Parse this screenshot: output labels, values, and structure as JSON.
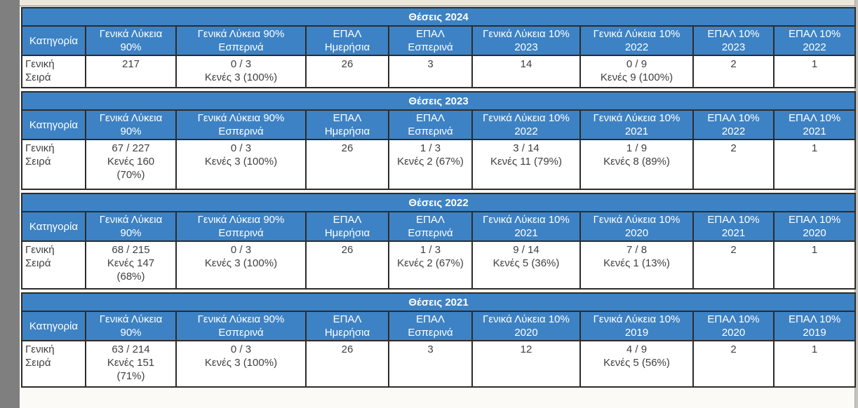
{
  "colors": {
    "header_blue": "#3d82c4",
    "border": "#2e2c28",
    "header_text": "#ffffff",
    "data_text": "#3f3f3f",
    "page_bg": "#fbfaf7",
    "top_band": "#ece7db",
    "left_strip": "#7f7f7f",
    "right_strip": "#c7c4be"
  },
  "tables": [
    {
      "title": "Θέσεις 2024",
      "year": "2024",
      "columns": [
        "Κατηγορία",
        "Γενικά Λύκεια\n90%",
        "Γενικά Λύκεια 90%\nΕσπερινά",
        "ΕΠΑΛ\nΗμερήσια",
        "ΕΠΑΛ\nΕσπερινά",
        "Γενικά Λύκεια 10%\n2023",
        "Γενικά Λύκεια 10%\n2022",
        "ΕΠΑΛ 10%\n2023",
        "ΕΠΑΛ 10%\n2022"
      ],
      "row": {
        "label": "Γενική\nΣειρά",
        "cells": [
          "217",
          "0 / 3\nΚενές 3 (100%)",
          "26",
          "3",
          "14",
          "0 / 9\nΚενές 9 (100%)",
          "2",
          "1"
        ]
      }
    },
    {
      "title": "Θέσεις 2023",
      "year": "2023",
      "columns": [
        "Κατηγορία",
        "Γενικά Λύκεια\n90%",
        "Γενικά Λύκεια 90%\nΕσπερινά",
        "ΕΠΑΛ\nΗμερήσια",
        "ΕΠΑΛ\nΕσπερινά",
        "Γενικά Λύκεια 10%\n2022",
        "Γενικά Λύκεια 10%\n2021",
        "ΕΠΑΛ 10%\n2022",
        "ΕΠΑΛ 10%\n2021"
      ],
      "row": {
        "label": "Γενική\nΣειρά",
        "cells": [
          "67 / 227\nΚενές 160\n(70%)",
          "0 / 3\nΚενές 3 (100%)",
          "26",
          "1 / 3\nΚενές 2 (67%)",
          "3 / 14\nΚενές 11 (79%)",
          "1 / 9\nΚενές 8 (89%)",
          "2",
          "1"
        ]
      }
    },
    {
      "title": "Θέσεις 2022",
      "year": "2022",
      "columns": [
        "Κατηγορία",
        "Γενικά Λύκεια\n90%",
        "Γενικά Λύκεια 90%\nΕσπερινά",
        "ΕΠΑΛ\nΗμερήσια",
        "ΕΠΑΛ\nΕσπερινά",
        "Γενικά Λύκεια 10%\n2021",
        "Γενικά Λύκεια 10%\n2020",
        "ΕΠΑΛ 10%\n2021",
        "ΕΠΑΛ 10%\n2020"
      ],
      "row": {
        "label": "Γενική\nΣειρά",
        "cells": [
          "68 / 215\nΚενές 147\n(68%)",
          "0 / 3\nΚενές 3 (100%)",
          "26",
          "1 / 3\nΚενές 2 (67%)",
          "9 / 14\nΚενές 5 (36%)",
          "7 / 8\nΚενές 1 (13%)",
          "2",
          "1"
        ]
      }
    },
    {
      "title": "Θέσεις 2021",
      "year": "2021",
      "columns": [
        "Κατηγορία",
        "Γενικά Λύκεια\n90%",
        "Γενικά Λύκεια 90%\nΕσπερινά",
        "ΕΠΑΛ\nΗμερήσια",
        "ΕΠΑΛ\nΕσπερινά",
        "Γενικά Λύκεια 10%\n2020",
        "Γενικά Λύκεια 10%\n2019",
        "ΕΠΑΛ 10%\n2020",
        "ΕΠΑΛ 10%\n2019"
      ],
      "row": {
        "label": "Γενική\nΣειρά",
        "cells": [
          "63 / 214\nΚενές 151\n(71%)",
          "0 / 3\nΚενές 3 (100%)",
          "26",
          "3",
          "12",
          "4 / 9\nΚενές 5 (56%)",
          "2",
          "1"
        ]
      }
    }
  ]
}
